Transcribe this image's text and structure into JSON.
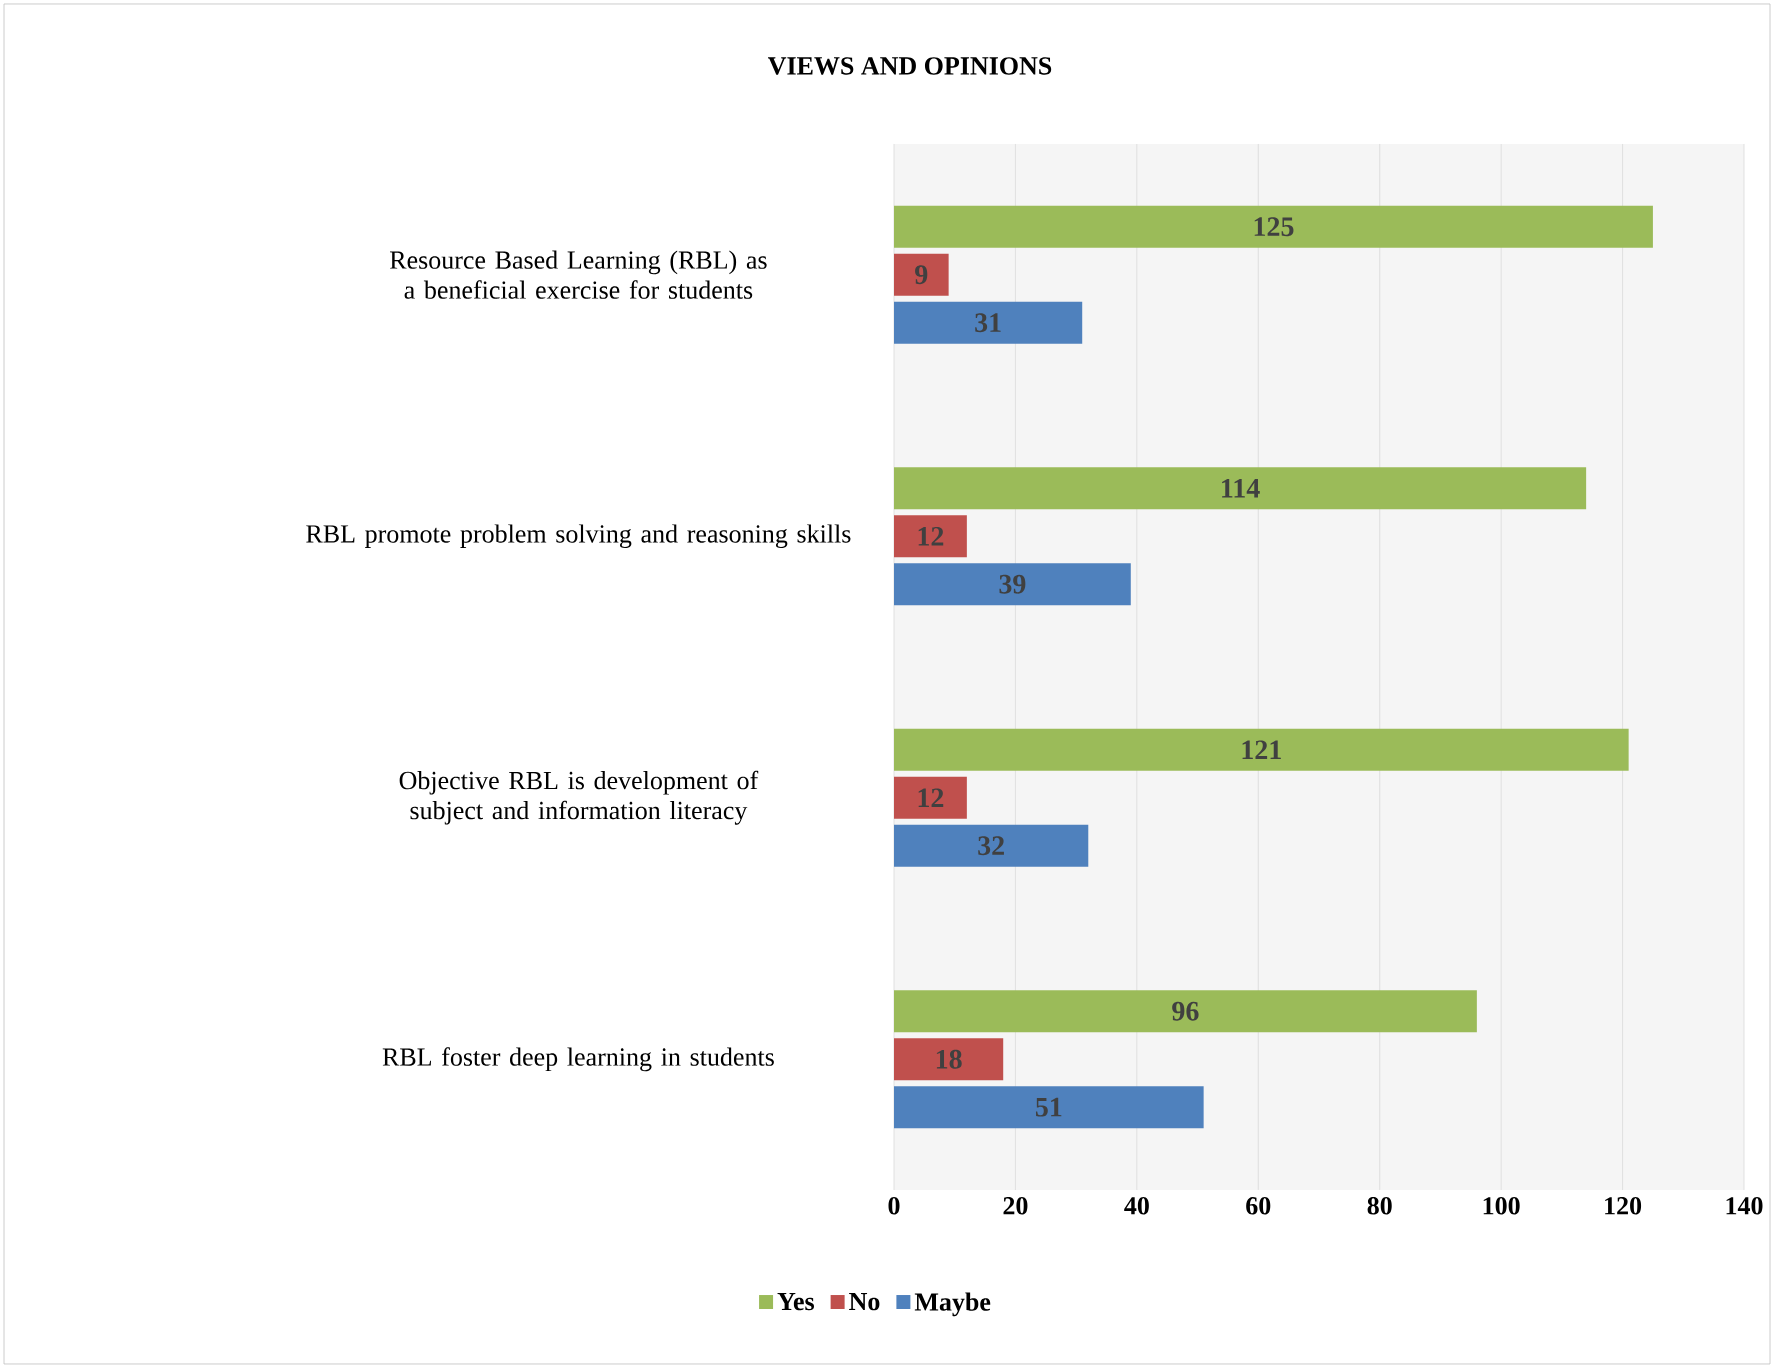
{
  "chart_data": {
    "type": "bar",
    "orientation": "horizontal",
    "title": "VIEWS AND OPINIONS",
    "categories": [
      "Resource Based Learning (RBL) as a beneficial exercise for students",
      "RBL promote problem solving and reasoning skills",
      "Objective RBL is development of subject and information literacy",
      "RBL  foster deep learning in students"
    ],
    "series": [
      {
        "name": "Yes",
        "color": "#9bbb59",
        "values": [
          125,
          114,
          121,
          96
        ]
      },
      {
        "name": "No",
        "color": "#c0504d",
        "values": [
          9,
          12,
          12,
          18
        ]
      },
      {
        "name": "Maybe",
        "color": "#4f81bd",
        "values": [
          31,
          39,
          32,
          51
        ]
      }
    ],
    "xlim": [
      0,
      140
    ],
    "xticks": [
      0,
      20,
      40,
      60,
      80,
      100,
      120,
      140
    ],
    "grid": "x",
    "legend": "bottom",
    "data_labels": true
  }
}
